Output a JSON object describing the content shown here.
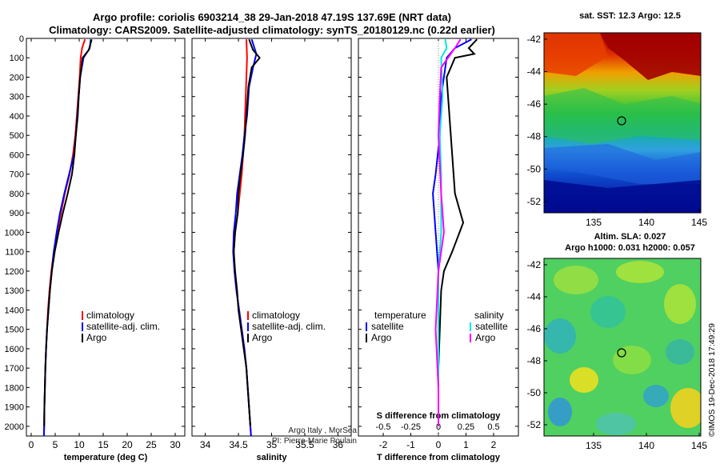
{
  "header": {
    "title_line1": "Argo profile: coriolis 6903214_38 29-Jan-2018 47.19S 137.69E (NRT data)",
    "title_line2": "Climatology: CARS2009. Satellite-adjusted climatology: synTS_20180129.nc (0.22d earlier)"
  },
  "credit": {
    "line1": "Argo Italy , MorSea",
    "line2": "PI: Pierre-Marie Poulain"
  },
  "stamp": "©IMOS 19-Dec-2018 17:49:29",
  "colors": {
    "climatology": "#ff0000",
    "satellite": "#0000ff",
    "argo": "#000000",
    "sat_salinity": "#00e5e5",
    "argo_salinity": "#ff00ff"
  },
  "chart_data": [
    {
      "type": "line",
      "xlabel": "temperature (deg C)",
      "ylabel": "",
      "xlim": [
        -1,
        32
      ],
      "ylim": [
        2050,
        0
      ],
      "xticks": [
        0,
        5,
        10,
        15,
        20,
        25,
        30
      ],
      "yticks": [
        0,
        100,
        200,
        300,
        400,
        500,
        600,
        700,
        800,
        900,
        1000,
        1100,
        1200,
        1300,
        1400,
        1500,
        1600,
        1700,
        1800,
        1900,
        2000
      ],
      "legend": [
        "climatology",
        "satellite-adj. clim.",
        "Argo"
      ],
      "legend_position": "lower-right",
      "series": [
        {
          "name": "climatology",
          "color": "#ff0000",
          "points": [
            [
              11.2,
              5
            ],
            [
              10.6,
              50
            ],
            [
              10.3,
              100
            ],
            [
              10.1,
              200
            ],
            [
              9.8,
              300
            ],
            [
              9.5,
              400
            ],
            [
              9.2,
              500
            ],
            [
              8.7,
              600
            ],
            [
              8.0,
              700
            ],
            [
              7.0,
              800
            ],
            [
              6.2,
              900
            ],
            [
              5.4,
              1000
            ],
            [
              4.7,
              1100
            ],
            [
              4.2,
              1200
            ],
            [
              3.8,
              1300
            ],
            [
              3.5,
              1400
            ],
            [
              3.3,
              1500
            ],
            [
              3.1,
              1600
            ],
            [
              2.95,
              1700
            ],
            [
              2.85,
              1800
            ],
            [
              2.75,
              1900
            ],
            [
              2.7,
              2000
            ],
            [
              2.65,
              2050
            ]
          ]
        },
        {
          "name": "satellite-adj. clim.",
          "color": "#0000ff",
          "points": [
            [
              12.4,
              5
            ],
            [
              12.2,
              50
            ],
            [
              10.9,
              100
            ],
            [
              10.2,
              200
            ],
            [
              9.9,
              300
            ],
            [
              9.6,
              400
            ],
            [
              9.3,
              500
            ],
            [
              8.9,
              600
            ],
            [
              7.9,
              700
            ],
            [
              6.9,
              800
            ],
            [
              6.0,
              900
            ],
            [
              5.3,
              1000
            ],
            [
              4.7,
              1100
            ],
            [
              4.3,
              1200
            ],
            [
              3.9,
              1300
            ],
            [
              3.6,
              1400
            ],
            [
              3.3,
              1500
            ],
            [
              3.1,
              1600
            ],
            [
              2.95,
              1700
            ],
            [
              2.85,
              1800
            ],
            [
              2.75,
              1900
            ],
            [
              2.7,
              2000
            ],
            [
              2.65,
              2050
            ]
          ]
        },
        {
          "name": "Argo",
          "color": "#000000",
          "points": [
            [
              12.6,
              5
            ],
            [
              12.0,
              60
            ],
            [
              10.7,
              100
            ],
            [
              10.2,
              200
            ],
            [
              9.9,
              300
            ],
            [
              9.7,
              400
            ],
            [
              9.3,
              500
            ],
            [
              9.0,
              600
            ],
            [
              8.5,
              700
            ],
            [
              7.6,
              800
            ],
            [
              6.6,
              900
            ],
            [
              5.7,
              1000
            ],
            [
              4.9,
              1100
            ],
            [
              4.3,
              1200
            ],
            [
              3.9,
              1300
            ],
            [
              3.6,
              1400
            ],
            [
              3.3,
              1500
            ],
            [
              3.1,
              1600
            ],
            [
              2.95,
              1700
            ],
            [
              2.85,
              1800
            ],
            [
              2.75,
              1900
            ],
            [
              2.7,
              2000
            ]
          ]
        }
      ]
    },
    {
      "type": "line",
      "xlabel": "salinity",
      "xlim": [
        33.8,
        36.2
      ],
      "ylim": [
        2050,
        0
      ],
      "xticks": [
        34,
        34.5,
        35,
        35.5,
        36
      ],
      "legend": [
        "climatology",
        "satellite-adj. clim.",
        "Argo"
      ],
      "legend_position": "lower-right",
      "series": [
        {
          "name": "climatology",
          "color": "#ff0000",
          "points": [
            [
              34.62,
              5
            ],
            [
              34.63,
              100
            ],
            [
              34.62,
              200
            ],
            [
              34.61,
              300
            ],
            [
              34.6,
              400
            ],
            [
              34.59,
              500
            ],
            [
              34.57,
              600
            ],
            [
              34.55,
              700
            ],
            [
              34.52,
              800
            ],
            [
              34.49,
              900
            ],
            [
              34.45,
              1000
            ],
            [
              34.43,
              1100
            ],
            [
              34.44,
              1200
            ],
            [
              34.47,
              1300
            ],
            [
              34.51,
              1400
            ],
            [
              34.55,
              1500
            ],
            [
              34.59,
              1600
            ],
            [
              34.62,
              1700
            ],
            [
              34.64,
              1800
            ],
            [
              34.66,
              1900
            ],
            [
              34.68,
              2000
            ],
            [
              34.69,
              2050
            ]
          ]
        },
        {
          "name": "satellite-adj. clim.",
          "color": "#0000ff",
          "points": [
            [
              34.7,
              5
            ],
            [
              34.77,
              80
            ],
            [
              34.72,
              150
            ],
            [
              34.66,
              250
            ],
            [
              34.63,
              400
            ],
            [
              34.59,
              500
            ],
            [
              34.56,
              600
            ],
            [
              34.52,
              700
            ],
            [
              34.48,
              800
            ],
            [
              34.46,
              900
            ],
            [
              34.43,
              1000
            ],
            [
              34.42,
              1100
            ],
            [
              34.44,
              1200
            ],
            [
              34.47,
              1300
            ],
            [
              34.51,
              1400
            ],
            [
              34.55,
              1500
            ],
            [
              34.59,
              1600
            ],
            [
              34.62,
              1700
            ],
            [
              34.64,
              1800
            ],
            [
              34.66,
              1900
            ],
            [
              34.68,
              2000
            ],
            [
              34.69,
              2050
            ]
          ]
        },
        {
          "name": "Argo",
          "color": "#000000",
          "points": [
            [
              34.66,
              5
            ],
            [
              34.72,
              60
            ],
            [
              34.82,
              100
            ],
            [
              34.7,
              150
            ],
            [
              34.65,
              250
            ],
            [
              34.62,
              400
            ],
            [
              34.6,
              500
            ],
            [
              34.57,
              600
            ],
            [
              34.53,
              700
            ],
            [
              34.5,
              800
            ],
            [
              34.49,
              900
            ],
            [
              34.45,
              1000
            ],
            [
              34.43,
              1100
            ],
            [
              34.45,
              1200
            ],
            [
              34.48,
              1300
            ],
            [
              34.5,
              1400
            ],
            [
              34.54,
              1500
            ],
            [
              34.58,
              1600
            ],
            [
              34.62,
              1700
            ],
            [
              34.64,
              1800
            ],
            [
              34.66,
              1900
            ],
            [
              34.68,
              2000
            ]
          ]
        }
      ]
    },
    {
      "type": "line",
      "xlabel": "T difference from climatology",
      "xlabel2": "S difference from climatology",
      "xlim": [
        -2.9,
        2.9
      ],
      "ylim": [
        2050,
        0
      ],
      "xticks": [
        -2,
        -1,
        0,
        1,
        2
      ],
      "xticks_s": [
        "-0.5",
        "-0.25",
        "0",
        "0.25",
        "0.5"
      ],
      "legend_t_title": "temperature",
      "legend_s_title": "salinity",
      "legend_t": [
        "satellite",
        "Argo"
      ],
      "legend_s": [
        "satellite",
        "Argo"
      ],
      "series": [
        {
          "name": "T satellite",
          "color": "#0000ff",
          "points": [
            [
              1.2,
              5
            ],
            [
              0.6,
              50
            ],
            [
              0.3,
              100
            ],
            [
              0.1,
              300
            ],
            [
              0.05,
              500
            ],
            [
              -0.1,
              700
            ],
            [
              -0.2,
              800
            ],
            [
              -0.1,
              1000
            ],
            [
              0.0,
              1200
            ],
            [
              0.0,
              1400
            ],
            [
              0.0,
              1600
            ],
            [
              0.0,
              1800
            ],
            [
              0.0,
              2000
            ]
          ]
        },
        {
          "name": "T Argo",
          "color": "#000000",
          "points": [
            [
              1.4,
              5
            ],
            [
              1.1,
              50
            ],
            [
              1.3,
              80
            ],
            [
              0.6,
              100
            ],
            [
              0.3,
              200
            ],
            [
              0.4,
              400
            ],
            [
              0.5,
              600
            ],
            [
              0.6,
              800
            ],
            [
              0.8,
              900
            ],
            [
              0.9,
              950
            ],
            [
              0.5,
              1100
            ],
            [
              0.2,
              1200
            ],
            [
              0.1,
              1300
            ],
            [
              0.05,
              1500
            ],
            [
              0.0,
              1700
            ],
            [
              0.0,
              1900
            ],
            [
              0.0,
              2000
            ]
          ]
        },
        {
          "name": "S satellite",
          "color": "#00e5e5",
          "points": [
            [
              0.25,
              5
            ],
            [
              0.3,
              50
            ],
            [
              0.1,
              100
            ],
            [
              0.15,
              300
            ],
            [
              0.05,
              500
            ],
            [
              0.1,
              700
            ],
            [
              0.1,
              1000
            ],
            [
              0.0,
              1200
            ],
            [
              0.0,
              1500
            ],
            [
              0.0,
              2000
            ]
          ]
        },
        {
          "name": "S Argo",
          "color": "#ff00ff",
          "points": [
            [
              0.8,
              5
            ],
            [
              0.6,
              50
            ],
            [
              0.1,
              150
            ],
            [
              0.05,
              300
            ],
            [
              0.0,
              500
            ],
            [
              0.1,
              800
            ],
            [
              0.2,
              1000
            ],
            [
              0.0,
              1200
            ],
            [
              -0.1,
              1500
            ],
            [
              0.0,
              1800
            ],
            [
              0.0,
              2000
            ]
          ]
        }
      ]
    }
  ],
  "maps": {
    "sst": {
      "title": "sat. SST: 12.3 Argo: 12.5",
      "xticks": [
        "135",
        "140",
        "145"
      ],
      "yticks": [
        "-42",
        "-44",
        "-46",
        "-48",
        "-50",
        "-52"
      ],
      "argo_lon": 137.69,
      "argo_lat": -47.19
    },
    "sla": {
      "title_line1": "Altim. SLA: 0.027",
      "title_line2": "Argo h1000: 0.031 h2000: 0.057",
      "xticks": [
        "135",
        "140",
        "145"
      ],
      "yticks": [
        "-42",
        "-44",
        "-46",
        "-48",
        "-50",
        "-52"
      ],
      "argo_lon": 137.69,
      "argo_lat": -47.19
    }
  }
}
